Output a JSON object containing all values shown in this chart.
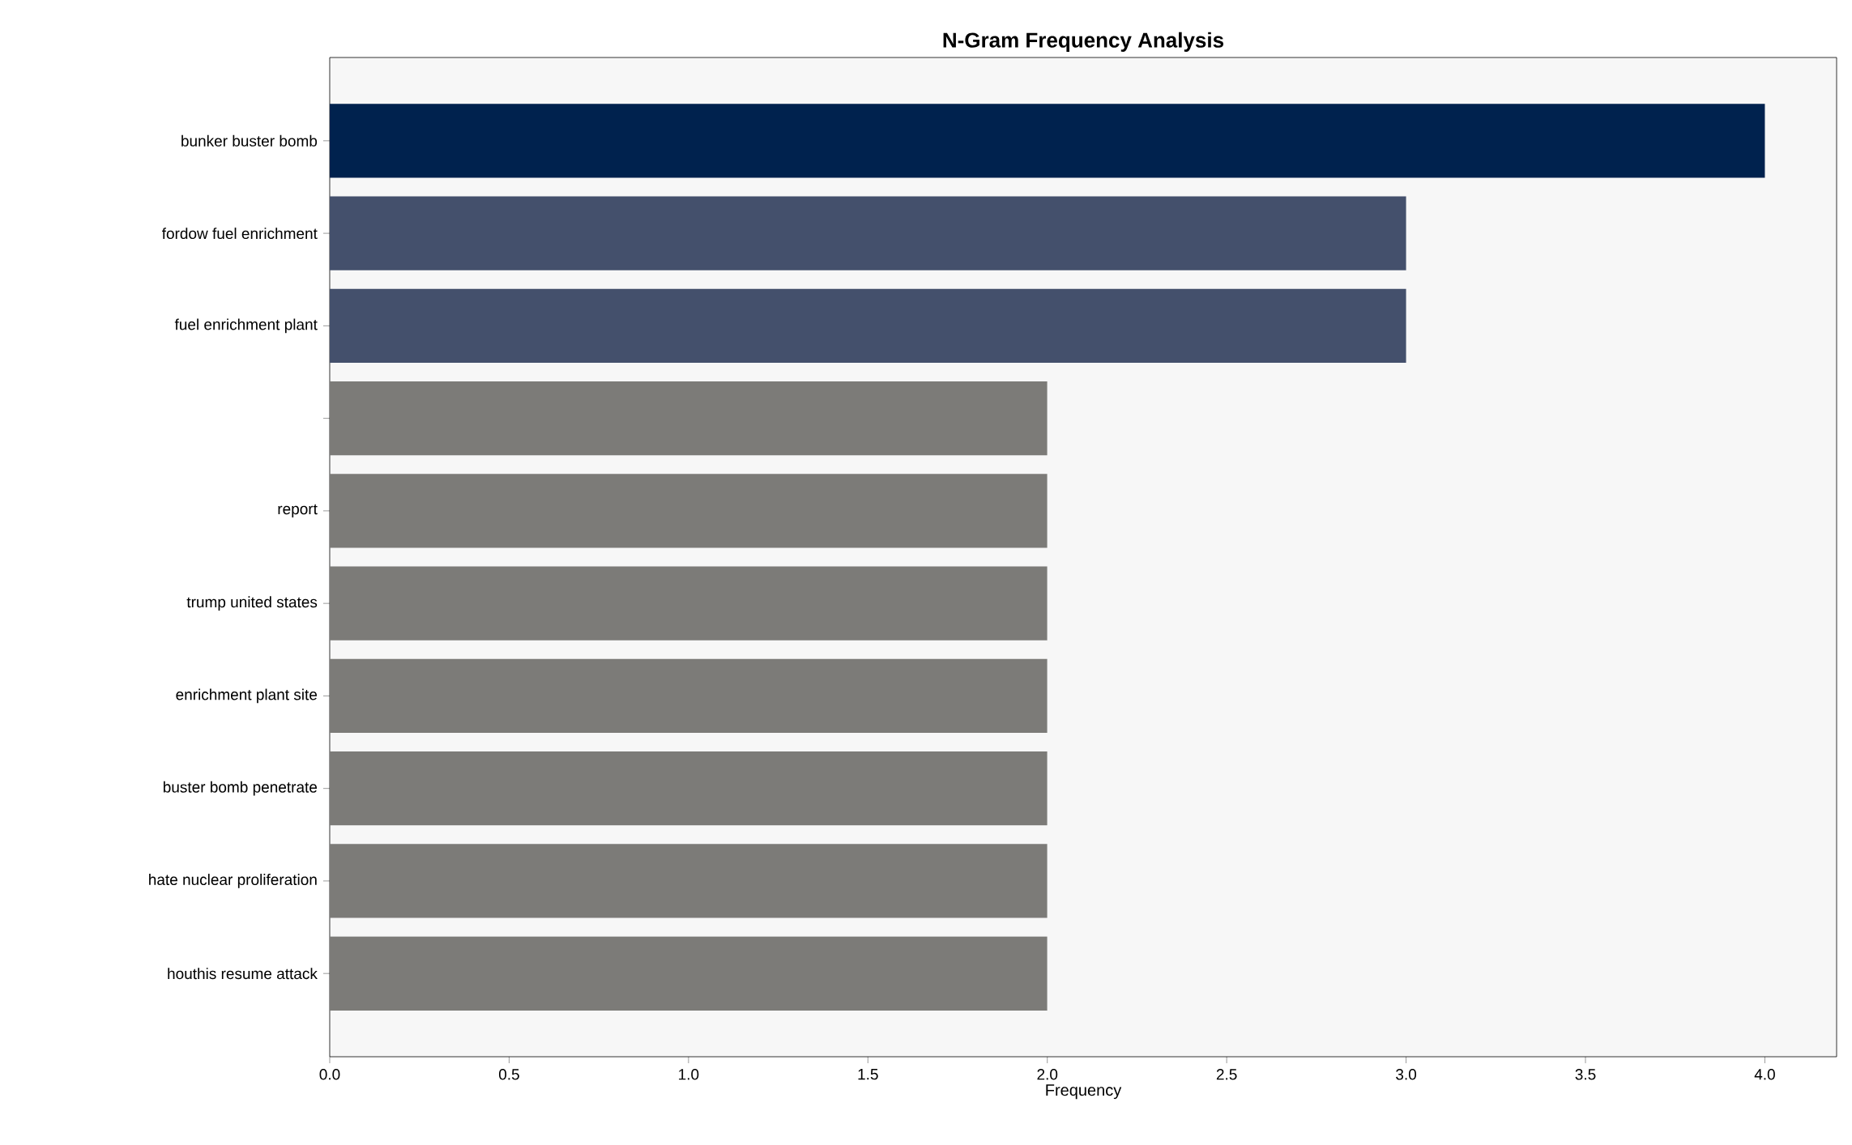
{
  "chart_data": {
    "type": "bar",
    "orientation": "horizontal",
    "title": "N-Gram Frequency Analysis",
    "xlabel": "Frequency",
    "categories": [
      "bunker buster bomb",
      "fordow fuel enrichment",
      "fuel enrichment plant",
      null,
      "report",
      "trump united states",
      "enrichment plant site",
      "buster bomb penetrate",
      "hate nuclear proliferation",
      "houthis resume attack"
    ],
    "values": [
      4,
      3,
      3,
      2,
      2,
      2,
      2,
      2,
      2,
      2
    ],
    "colors": [
      "#00224e",
      "#44506c",
      "#44506c",
      "#7c7b78",
      "#7c7b78",
      "#7c7b78",
      "#7c7b78",
      "#7c7b78",
      "#7c7b78",
      "#7c7b78"
    ],
    "xlim": [
      0,
      4.2
    ],
    "xticks": [
      {
        "value": 0,
        "label": "0.0"
      },
      {
        "value": 0.5,
        "label": "0.5"
      },
      {
        "value": 1,
        "label": "1.0"
      },
      {
        "value": 1.5,
        "label": "1.5"
      },
      {
        "value": 2,
        "label": "2.0"
      },
      {
        "value": 2.5,
        "label": "2.5"
      },
      {
        "value": 3,
        "label": "3.0"
      },
      {
        "value": 3.5,
        "label": "3.5"
      },
      {
        "value": 4,
        "label": "4.0"
      }
    ]
  }
}
